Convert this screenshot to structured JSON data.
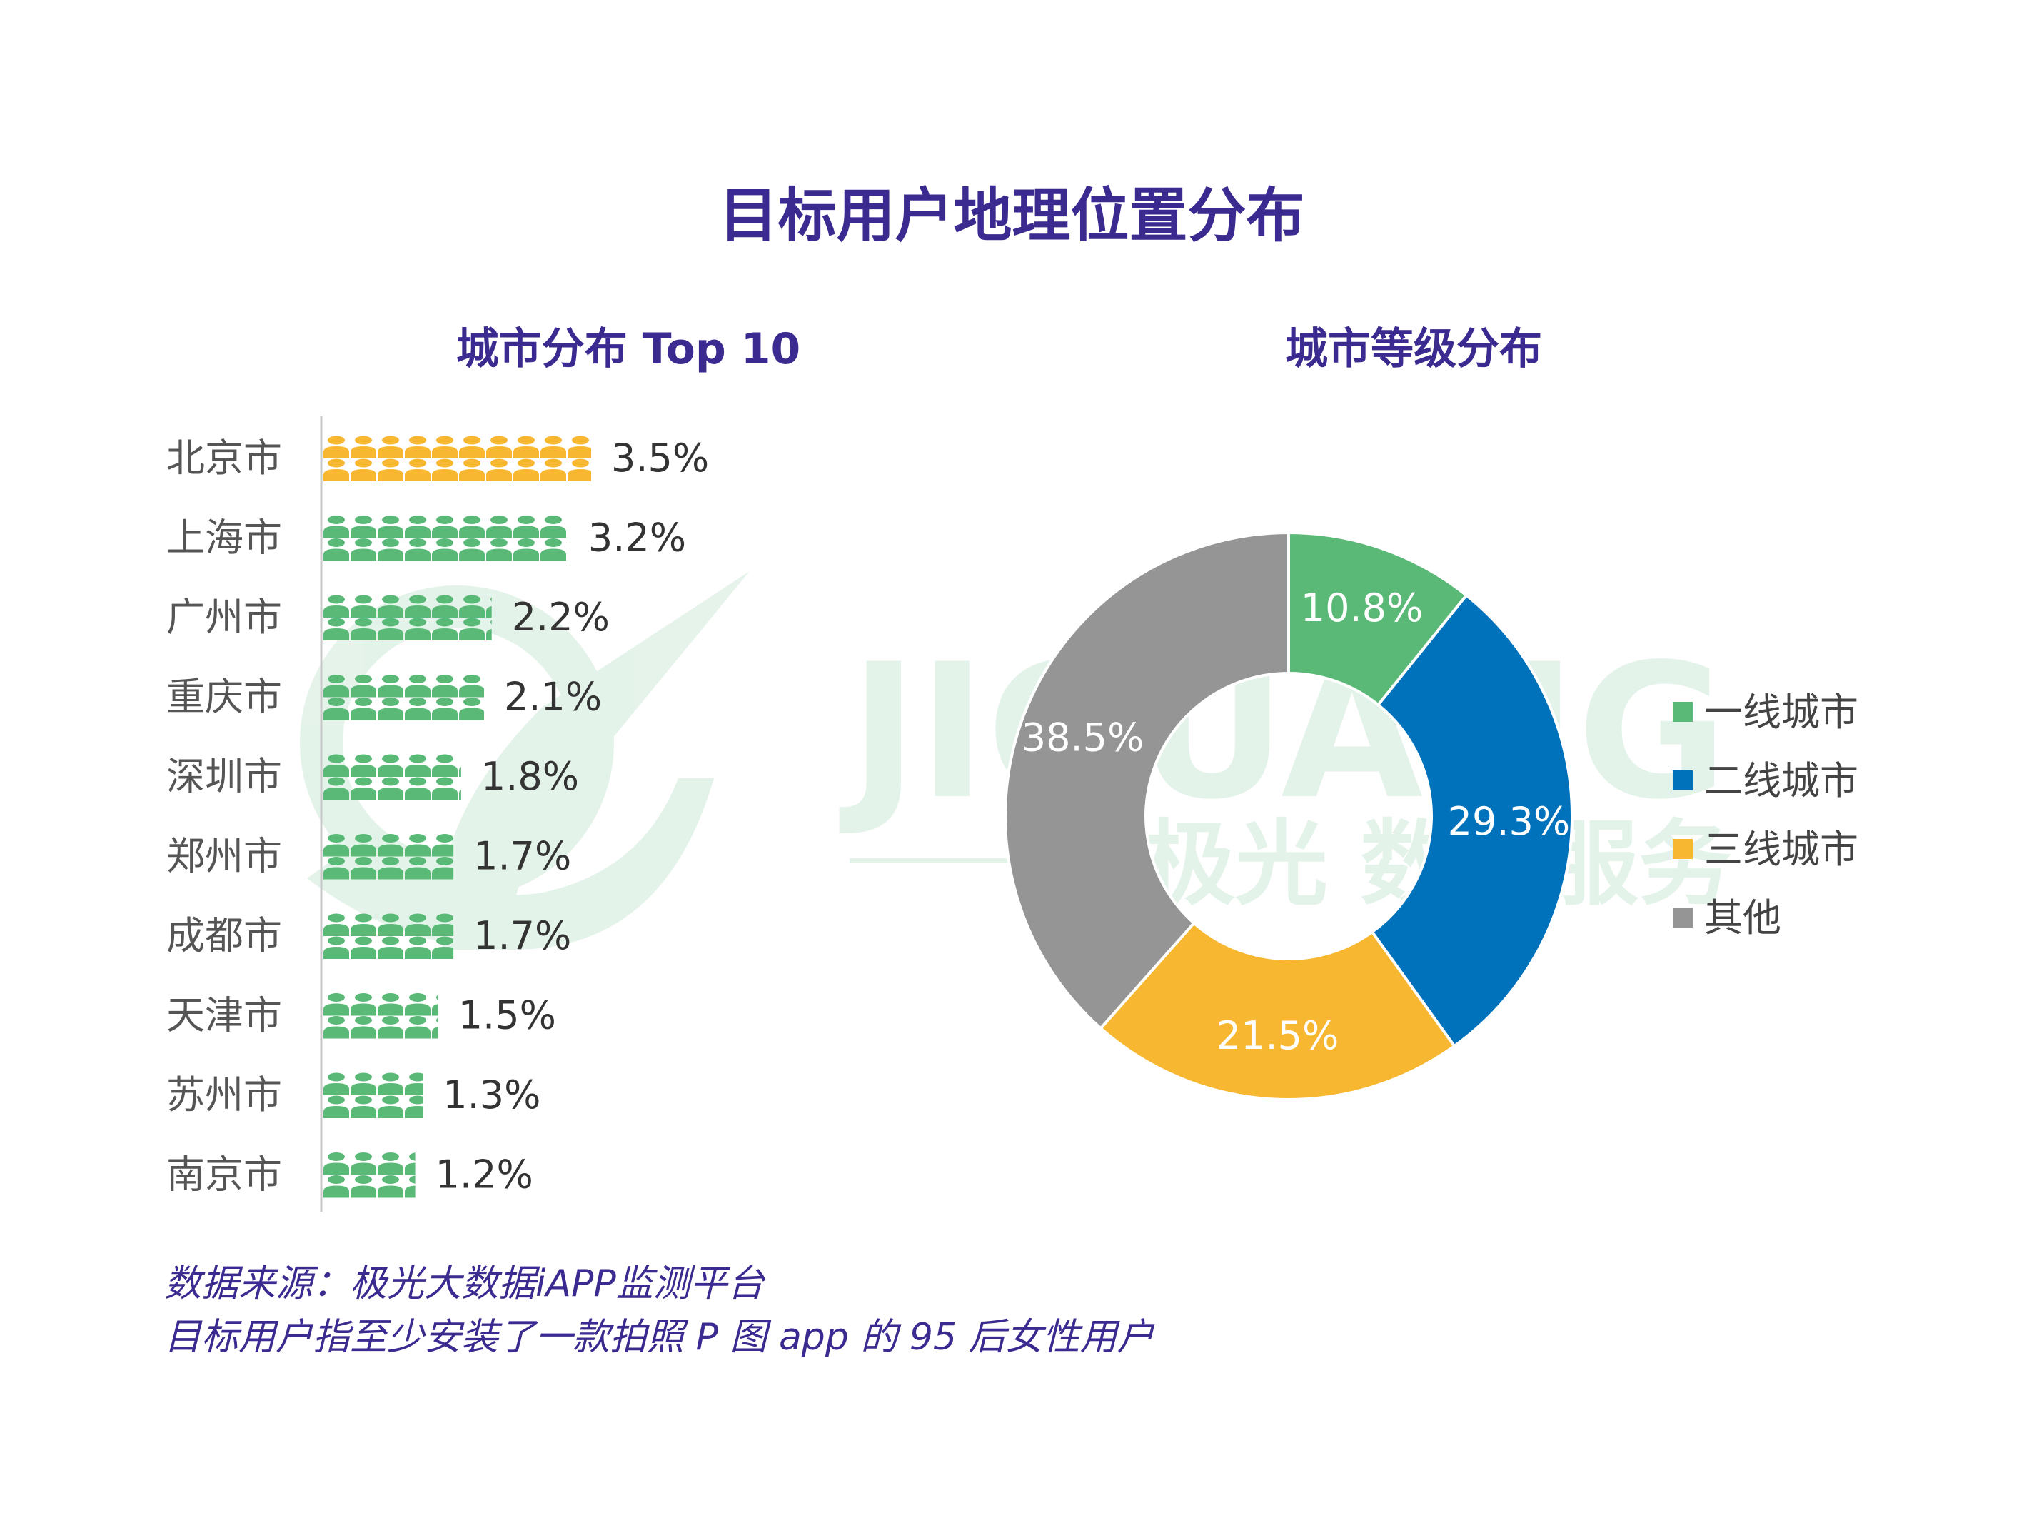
{
  "title": "目标用户地理位置分布",
  "watermark": {
    "brand": "JIGUANG",
    "tagline": "极光 数据服务"
  },
  "chart_data": [
    {
      "type": "bar",
      "title": "城市分布 Top 10",
      "categories": [
        "北京市",
        "上海市",
        "广州市",
        "重庆市",
        "深圳市",
        "郑州市",
        "成都市",
        "天津市",
        "苏州市",
        "南京市"
      ],
      "values": [
        3.5,
        3.2,
        2.2,
        2.1,
        1.8,
        1.7,
        1.7,
        1.5,
        1.3,
        1.2
      ],
      "value_labels": [
        "3.5%",
        "3.2%",
        "2.2%",
        "2.1%",
        "1.8%",
        "1.7%",
        "1.7%",
        "1.5%",
        "1.3%",
        "1.2%"
      ],
      "unit": "%",
      "orientation": "horizontal",
      "mark": "person-icon-pictograph",
      "colors": {
        "highlight": "#f7b731",
        "default": "#5bb978"
      }
    },
    {
      "type": "pie",
      "title": "城市等级分布",
      "donut": true,
      "categories": [
        "一线城市",
        "二线城市",
        "三线城市",
        "其他"
      ],
      "values": [
        10.8,
        29.3,
        21.5,
        38.5
      ],
      "value_labels": [
        "10.8%",
        "29.3%",
        "21.5%",
        "38.5%"
      ],
      "colors": [
        "#5bb978",
        "#0072bc",
        "#f7b731",
        "#959595"
      ],
      "legend": "right"
    }
  ],
  "footnotes": {
    "source": "数据来源：极光大数据iAPP监测平台",
    "note": "目标用户指至少安装了一款拍照 P 图 app 的 95 后女性用户"
  }
}
